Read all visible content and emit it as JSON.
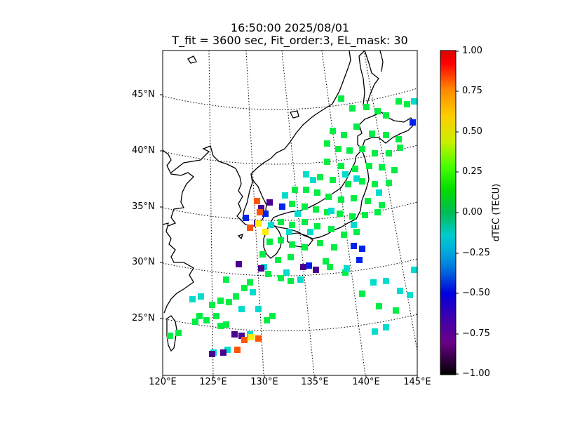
{
  "title": {
    "line1": "16:50:00 2025/08/01",
    "line2": "T_fit = 3600 sec, Fit_order:3, EL_mask: 30"
  },
  "map": {
    "lat_labels": [
      "45°N",
      "40°N",
      "35°N",
      "30°N",
      "25°N"
    ],
    "lon_labels": [
      "120°E",
      "125°E",
      "130°E",
      "135°E",
      "140°E",
      "145°E"
    ],
    "lon_range": [
      120,
      145
    ],
    "lat_range": [
      20,
      49
    ],
    "graticule": "dotted"
  },
  "colorbar": {
    "label": "dTEC (TECU)",
    "ticks": [
      "1.00",
      "0.75",
      "0.50",
      "0.25",
      "0.00",
      "−0.25",
      "−0.50",
      "−0.75",
      "−1.00"
    ],
    "range": [
      -1.0,
      1.0
    ],
    "colormap": "nipy_spectral-like (black-purple-blue-cyan-green-yellow-orange-red)"
  },
  "colors": {
    "coastline": "#000000",
    "background": "#ffffff"
  }
}
